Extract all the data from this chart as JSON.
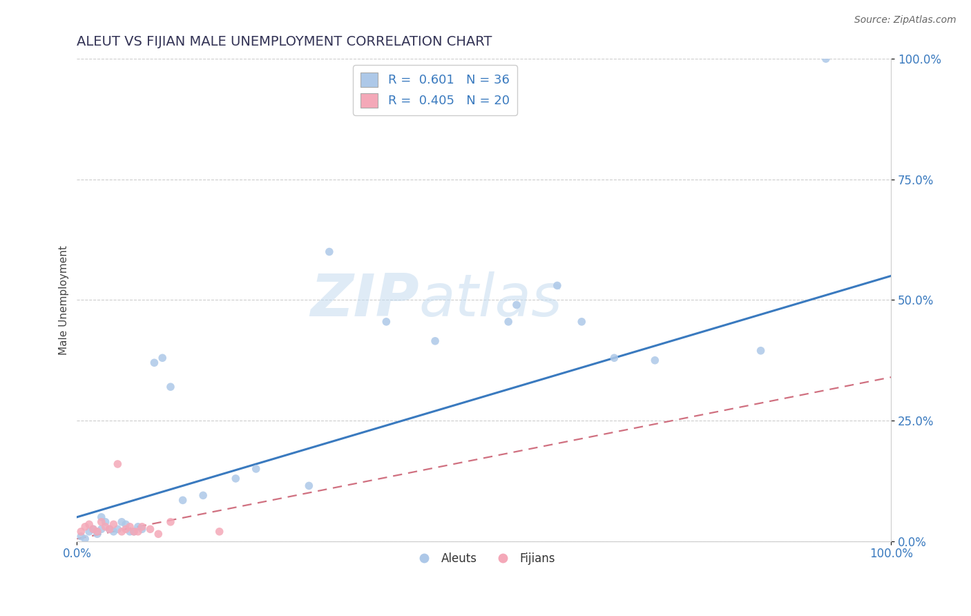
{
  "title": "ALEUT VS FIJIAN MALE UNEMPLOYMENT CORRELATION CHART",
  "source": "Source: ZipAtlas.com",
  "ylabel": "Male Unemployment",
  "xlim": [
    0.0,
    1.0
  ],
  "ylim": [
    0.0,
    1.0
  ],
  "ytick_labels": [
    "0.0%",
    "25.0%",
    "50.0%",
    "75.0%",
    "100.0%"
  ],
  "ytick_vals": [
    0.0,
    0.25,
    0.5,
    0.75,
    1.0
  ],
  "xtick_vals": [
    0.0,
    1.0
  ],
  "xtick_labels": [
    "0.0%",
    "100.0%"
  ],
  "aleut_color": "#adc8e8",
  "fijian_color": "#f4a8b8",
  "aleut_line_color": "#3a7abf",
  "fijian_line_color": "#d07080",
  "grid_color": "#cccccc",
  "background_color": "#ffffff",
  "legend_aleut_label": "R =  0.601   N = 36",
  "legend_fijian_label": "R =  0.405   N = 20",
  "aleut_scatter_x": [
    0.005,
    0.01,
    0.015,
    0.02,
    0.025,
    0.03,
    0.03,
    0.035,
    0.04,
    0.045,
    0.05,
    0.055,
    0.06,
    0.065,
    0.07,
    0.075,
    0.08,
    0.095,
    0.105,
    0.115,
    0.13,
    0.155,
    0.195,
    0.22,
    0.285,
    0.31,
    0.38,
    0.44,
    0.53,
    0.54,
    0.59,
    0.62,
    0.66,
    0.71,
    0.84,
    0.92
  ],
  "aleut_scatter_y": [
    0.01,
    0.005,
    0.02,
    0.025,
    0.015,
    0.025,
    0.05,
    0.04,
    0.025,
    0.02,
    0.025,
    0.04,
    0.035,
    0.02,
    0.02,
    0.03,
    0.025,
    0.37,
    0.38,
    0.32,
    0.085,
    0.095,
    0.13,
    0.15,
    0.115,
    0.6,
    0.455,
    0.415,
    0.455,
    0.49,
    0.53,
    0.455,
    0.38,
    0.375,
    0.395,
    1.0
  ],
  "fijian_scatter_x": [
    0.005,
    0.01,
    0.015,
    0.02,
    0.025,
    0.03,
    0.035,
    0.04,
    0.045,
    0.05,
    0.055,
    0.06,
    0.065,
    0.07,
    0.075,
    0.08,
    0.09,
    0.1,
    0.115,
    0.175
  ],
  "fijian_scatter_y": [
    0.02,
    0.03,
    0.035,
    0.025,
    0.02,
    0.04,
    0.03,
    0.025,
    0.035,
    0.16,
    0.02,
    0.025,
    0.03,
    0.02,
    0.02,
    0.03,
    0.025,
    0.015,
    0.04,
    0.02
  ],
  "aleut_trend": [
    0.05,
    0.55
  ],
  "fijian_trend": [
    0.005,
    0.34
  ]
}
